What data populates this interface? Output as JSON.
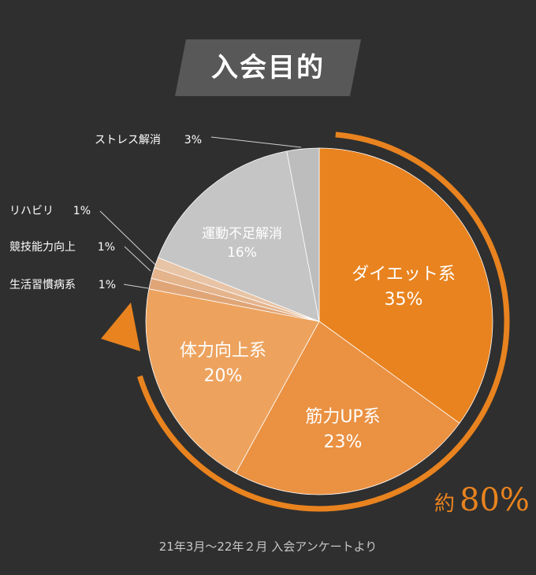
{
  "title": "入会目的",
  "chart_data": {
    "type": "pie",
    "slices": [
      {
        "label": "ダイエット系",
        "value": 35,
        "value_label": "35%",
        "color": "#e8831f",
        "label_style": "inside"
      },
      {
        "label": "筋力UP系",
        "value": 23,
        "value_label": "23%",
        "color": "#ea9142",
        "label_style": "inside"
      },
      {
        "label": "体力向上系",
        "value": 20,
        "value_label": "20%",
        "color": "#eda35e",
        "label_style": "inside"
      },
      {
        "label": "生活習慣病系",
        "value": 1,
        "value_label": "1%",
        "color": "#e0a577",
        "label_style": "outside"
      },
      {
        "label": "競技能力向上",
        "value": 1,
        "value_label": "1%",
        "color": "#e4b48d",
        "label_style": "outside"
      },
      {
        "label": "リハビリ",
        "value": 1,
        "value_label": "1%",
        "color": "#e8c4a6",
        "label_style": "outside"
      },
      {
        "label": "運動不足解消",
        "value": 16,
        "value_label": "16%",
        "color": "#c5c5c5",
        "label_style": "inside"
      },
      {
        "label": "ストレス解消",
        "value": 3,
        "value_label": "3%",
        "color": "#bdbdbd",
        "label_style": "outside"
      }
    ],
    "annotation": {
      "prefix": "約",
      "value": "80%",
      "color": "#e8831f"
    }
  },
  "footnote": "21年3月〜22年２月 入会アンケートより"
}
